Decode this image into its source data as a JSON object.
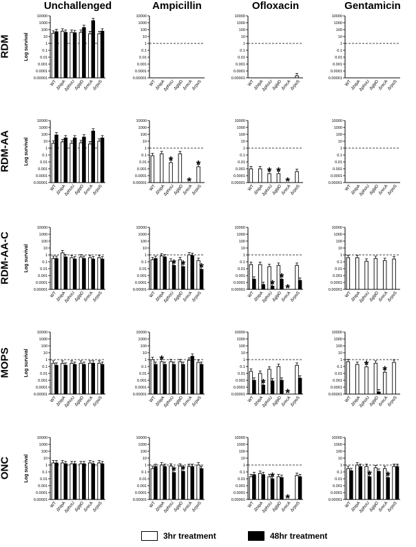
{
  "columns": [
    "Unchallenged",
    "Ampicillin",
    "Ofloxacin",
    "Gentamicin"
  ],
  "rows": [
    "RDM",
    "RDM-AA",
    "RDM-AA-C",
    "MOPS",
    "ONC"
  ],
  "ylabel": "Log survival",
  "legend": {
    "open": "3hr treatment",
    "filled": "48hr treatment"
  },
  "colors": {
    "open": "#ffffff",
    "filled": "#000000",
    "axis": "#000000"
  },
  "chart_data": {
    "type": "bar",
    "scale": "log",
    "categories": [
      "WT",
      "ΔhipA",
      "ΔphoU",
      "ΔglpD",
      "ΔrecA",
      "ΔrpoS"
    ],
    "yticks": [
      "10000",
      "1000",
      "100",
      "10",
      "1",
      "0.1",
      "0.01",
      "0.001",
      "0.0001",
      "0.00001"
    ],
    "ylim": [
      1e-05,
      10000
    ],
    "reference_line": 1,
    "series_names": [
      "3hr treatment",
      "48hr treatment"
    ],
    "panels": [
      {
        "row": "RDM",
        "col": "Unchallenged",
        "open": [
          30,
          60,
          40,
          40,
          25,
          25
        ],
        "filled": [
          50,
          40,
          35,
          200,
          2000,
          60
        ],
        "stars": []
      },
      {
        "row": "RDM",
        "col": "Ampicillin",
        "open": [
          null,
          null,
          null,
          null,
          null,
          null
        ],
        "filled": [
          null,
          null,
          null,
          null,
          null,
          null
        ],
        "stars": []
      },
      {
        "row": "RDM",
        "col": "Ofloxacin",
        "open": [
          null,
          null,
          null,
          null,
          null,
          2e-05
        ],
        "filled": [
          null,
          null,
          null,
          null,
          null,
          null
        ],
        "stars": []
      },
      {
        "row": "RDM",
        "col": "Gentamicin",
        "open": [
          null,
          null,
          null,
          null,
          null,
          null
        ],
        "filled": [
          null,
          null,
          null,
          null,
          null,
          null
        ],
        "stars": []
      },
      {
        "row": "RDM-AA",
        "col": "Unchallenged",
        "open": [
          5,
          8,
          5,
          6,
          4,
          10
        ],
        "filled": [
          80,
          30,
          30,
          40,
          300,
          30
        ],
        "stars": []
      },
      {
        "row": "RDM-AA",
        "col": "Ampicillin",
        "open": [
          0.08,
          0.15,
          0.008,
          0.15,
          null,
          0.002
        ],
        "filled": [
          null,
          null,
          null,
          null,
          null,
          null
        ],
        "stars": [
          {
            "i": 2,
            "s": "open"
          },
          {
            "i": 4,
            "s": "open"
          },
          {
            "i": 5,
            "s": "open"
          }
        ]
      },
      {
        "row": "RDM-AA",
        "col": "Ofloxacin",
        "open": [
          0.001,
          0.001,
          0.0002,
          0.0002,
          null,
          0.0004
        ],
        "filled": [
          null,
          null,
          null,
          null,
          null,
          null
        ],
        "stars": [
          {
            "i": 2,
            "s": "open"
          },
          {
            "i": 3,
            "s": "open"
          },
          {
            "i": 4,
            "s": "open"
          }
        ]
      },
      {
        "row": "RDM-AA",
        "col": "Gentamicin",
        "open": [
          null,
          null,
          null,
          null,
          null,
          null
        ],
        "filled": [
          null,
          null,
          null,
          null,
          null,
          null
        ],
        "stars": []
      },
      {
        "row": "RDM-AA-C",
        "col": "Unchallenged",
        "open": [
          0.3,
          2,
          0.4,
          0.5,
          0.4,
          0.4
        ],
        "filled": [
          0.3,
          0.5,
          0.25,
          0.3,
          0.25,
          0.25
        ],
        "stars": []
      },
      {
        "row": "RDM-AA-C",
        "col": "Ampicillin",
        "open": [
          0.2,
          0.7,
          0.12,
          0.2,
          1,
          0.15
        ],
        "filled": [
          0.3,
          0.5,
          0.03,
          0.02,
          0.8,
          0.008
        ],
        "stars": [
          {
            "i": 2,
            "s": "filled"
          },
          {
            "i": 3,
            "s": "filled"
          },
          {
            "i": 5,
            "s": "filled"
          }
        ]
      },
      {
        "row": "RDM-AA-C",
        "col": "Ofloxacin",
        "open": [
          0.04,
          0.04,
          0.02,
          0.03,
          null,
          0.03
        ],
        "filled": [
          0.0003,
          5e-05,
          3e-05,
          0.0003,
          null,
          0.0002
        ],
        "stars": [
          {
            "i": 2,
            "s": "filled"
          },
          {
            "i": 3,
            "s": "filled"
          },
          {
            "i": 4,
            "s": "open"
          }
        ]
      },
      {
        "row": "RDM-AA-C",
        "col": "Gentamicin",
        "open": [
          0.4,
          0.4,
          0.12,
          0.3,
          0.15,
          0.25
        ],
        "filled": [
          null,
          null,
          null,
          null,
          null,
          null
        ],
        "stars": []
      },
      {
        "row": "MOPS",
        "col": "Unchallenged",
        "open": [
          0.3,
          0.3,
          0.3,
          0.3,
          0.3,
          0.3
        ],
        "filled": [
          0.15,
          0.15,
          0.2,
          0.2,
          0.3,
          0.2
        ],
        "stars": []
      },
      {
        "row": "MOPS",
        "col": "Ampicillin",
        "open": [
          1,
          0.5,
          0.5,
          0.5,
          0.8,
          0.4
        ],
        "filled": [
          0.2,
          0.2,
          0.2,
          0.2,
          3,
          0.2
        ],
        "stars": [
          {
            "i": 1,
            "s": "open"
          }
        ]
      },
      {
        "row": "MOPS",
        "col": "Ofloxacin",
        "open": [
          0.02,
          0.01,
          0.04,
          0.1,
          null,
          0.15
        ],
        "filled": [
          0.001,
          0.0002,
          0.0008,
          0.001,
          null,
          0.002
        ],
        "stars": [
          {
            "i": 1,
            "s": "filled"
          },
          {
            "i": 4,
            "s": "open"
          }
        ]
      },
      {
        "row": "MOPS",
        "col": "Gentamicin",
        "open": [
          0.5,
          0.2,
          0.09,
          0.3,
          0.015,
          0.4
        ],
        "filled": [
          null,
          null,
          null,
          2e-05,
          null,
          null
        ],
        "stars": [
          {
            "i": 2,
            "s": "open"
          },
          {
            "i": 4,
            "s": "open"
          }
        ]
      },
      {
        "row": "ONC",
        "col": "Unchallenged",
        "open": [
          2,
          2,
          1.5,
          1.5,
          2,
          2
        ],
        "filled": [
          2,
          1.5,
          1.5,
          1.5,
          1.5,
          1.5
        ],
        "stars": []
      },
      {
        "row": "ONC",
        "col": "Ampicillin",
        "open": [
          0.3,
          1,
          0.7,
          0.7,
          0.6,
          1
        ],
        "filled": [
          0.6,
          0.6,
          0.08,
          0.12,
          0.6,
          0.3
        ],
        "stars": [
          {
            "i": 2,
            "s": "filled"
          },
          {
            "i": 3,
            "s": "filled"
          }
        ]
      },
      {
        "row": "ONC",
        "col": "Ofloxacin",
        "open": [
          0.02,
          0.06,
          0.02,
          0.02,
          null,
          0.03
        ],
        "filled": [
          0.04,
          0.04,
          0.01,
          0.015,
          null,
          0.02
        ],
        "stars": [
          {
            "i": 2,
            "s": "filled"
          },
          {
            "i": 4,
            "s": "open"
          }
        ]
      },
      {
        "row": "ONC",
        "col": "Gentamicin",
        "open": [
          0.3,
          1,
          0.6,
          0.4,
          0.3,
          0.6
        ],
        "filled": [
          0.15,
          0.6,
          0.02,
          0.12,
          0.015,
          0.6
        ],
        "stars": [
          {
            "i": 2,
            "s": "filled"
          },
          {
            "i": 4,
            "s": "filled"
          }
        ]
      }
    ]
  }
}
